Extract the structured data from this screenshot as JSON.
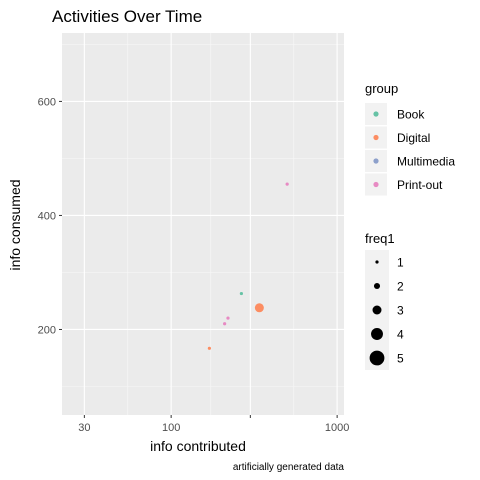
{
  "chart_data": {
    "type": "scatter",
    "title": "Activities Over Time",
    "xlabel": "info contributed",
    "ylabel": "info consumed",
    "caption": "artificially generated data",
    "x_scale": "log10",
    "xlim": [
      22,
      1100
    ],
    "ylim": [
      50,
      720
    ],
    "x_ticks": [
      30,
      100,
      300,
      1000
    ],
    "x_tick_labels": [
      "30",
      "100",
      "",
      "1000"
    ],
    "y_ticks": [
      200,
      400,
      600
    ],
    "y_tick_labels": [
      "200",
      "400",
      "600"
    ],
    "grid": true,
    "legend_position": "right",
    "color_legend": {
      "title": "group",
      "items": [
        {
          "label": "Book",
          "color": "#66c2a5"
        },
        {
          "label": "Digital",
          "color": "#fc8d62"
        },
        {
          "label": "Multimedia",
          "color": "#8da0cb"
        },
        {
          "label": "Print-out",
          "color": "#e78ac3"
        }
      ]
    },
    "size_legend": {
      "title": "freq1",
      "items": [
        {
          "label": "1",
          "value": 1
        },
        {
          "label": "2",
          "value": 2
        },
        {
          "label": "3",
          "value": 3
        },
        {
          "label": "4",
          "value": 4
        },
        {
          "label": "5",
          "value": 5
        }
      ]
    },
    "points": [
      {
        "group": "Book",
        "x": 265,
        "y": 263,
        "freq1": 1
      },
      {
        "group": "Digital",
        "x": 340,
        "y": 238,
        "freq1": 3
      },
      {
        "group": "Digital",
        "x": 170,
        "y": 167,
        "freq1": 1
      },
      {
        "group": "Print-out",
        "x": 500,
        "y": 455,
        "freq1": 1
      },
      {
        "group": "Print-out",
        "x": 220,
        "y": 220,
        "freq1": 1
      },
      {
        "group": "Print-out",
        "x": 210,
        "y": 210,
        "freq1": 1
      }
    ]
  }
}
